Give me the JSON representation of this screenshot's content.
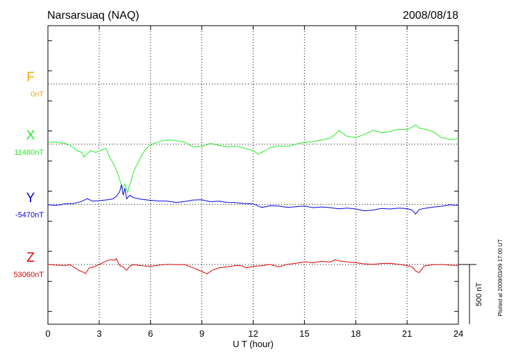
{
  "chart_data": {
    "type": "line",
    "title": "Narsarsuaq (NAQ)",
    "date": "2008/08/18",
    "xlabel": "U T (hour)",
    "xlim": [
      0,
      24
    ],
    "xticks": [
      "0",
      "3",
      "6",
      "9",
      "12",
      "15",
      "18",
      "21",
      "24"
    ],
    "scale_bar_label": "500 nT",
    "scale_bar_nT": 500,
    "plotted_note": "Plotted at 2009/03/09 17:00 UT",
    "grid": true,
    "series": [
      {
        "name": "F",
        "baseline_label": "0nT",
        "color": "#f5a800",
        "baseline_nT": 0,
        "has_data": false,
        "points": []
      },
      {
        "name": "X",
        "baseline_label": "11480nT",
        "color": "#22ee22",
        "baseline_nT": 11480,
        "has_data": true,
        "points": [
          [
            0.0,
            11480
          ],
          [
            0.5,
            11482
          ],
          [
            1.0,
            11470
          ],
          [
            1.4,
            11445
          ],
          [
            1.7,
            11410
          ],
          [
            2.0,
            11395
          ],
          [
            2.1,
            11355
          ],
          [
            2.3,
            11385
          ],
          [
            2.5,
            11410
          ],
          [
            2.8,
            11395
          ],
          [
            3.2,
            11420
          ],
          [
            3.4,
            11430
          ],
          [
            3.6,
            11360
          ],
          [
            3.8,
            11310
          ],
          [
            4.0,
            11250
          ],
          [
            4.2,
            11170
          ],
          [
            4.35,
            11090
          ],
          [
            4.5,
            11130
          ],
          [
            4.65,
            11060
          ],
          [
            4.8,
            11130
          ],
          [
            5.0,
            11230
          ],
          [
            5.3,
            11320
          ],
          [
            5.6,
            11400
          ],
          [
            5.9,
            11450
          ],
          [
            6.2,
            11470
          ],
          [
            6.6,
            11490
          ],
          [
            7.0,
            11500
          ],
          [
            7.5,
            11495
          ],
          [
            8.0,
            11480
          ],
          [
            8.5,
            11440
          ],
          [
            9.0,
            11445
          ],
          [
            9.5,
            11470
          ],
          [
            10.0,
            11455
          ],
          [
            10.5,
            11440
          ],
          [
            11.0,
            11450
          ],
          [
            11.5,
            11430
          ],
          [
            12.0,
            11410
          ],
          [
            12.3,
            11380
          ],
          [
            12.7,
            11410
          ],
          [
            13.0,
            11435
          ],
          [
            13.5,
            11450
          ],
          [
            14.0,
            11445
          ],
          [
            14.5,
            11465
          ],
          [
            15.0,
            11480
          ],
          [
            15.5,
            11485
          ],
          [
            16.0,
            11500
          ],
          [
            16.5,
            11515
          ],
          [
            16.8,
            11545
          ],
          [
            17.0,
            11580
          ],
          [
            17.2,
            11560
          ],
          [
            17.5,
            11530
          ],
          [
            18.0,
            11520
          ],
          [
            18.5,
            11545
          ],
          [
            19.0,
            11580
          ],
          [
            19.5,
            11560
          ],
          [
            20.0,
            11570
          ],
          [
            20.5,
            11590
          ],
          [
            21.0,
            11585
          ],
          [
            21.5,
            11625
          ],
          [
            21.7,
            11600
          ],
          [
            22.0,
            11590
          ],
          [
            22.5,
            11570
          ],
          [
            23.0,
            11520
          ],
          [
            23.5,
            11505
          ],
          [
            24.0,
            11510
          ]
        ]
      },
      {
        "name": "Y",
        "baseline_label": "-5470nT",
        "color": "#0000dd",
        "baseline_nT": -5470,
        "has_data": true,
        "points": [
          [
            0.0,
            -5470
          ],
          [
            0.5,
            -5474
          ],
          [
            1.0,
            -5462
          ],
          [
            1.5,
            -5460
          ],
          [
            2.0,
            -5440
          ],
          [
            2.3,
            -5418
          ],
          [
            2.6,
            -5440
          ],
          [
            3.0,
            -5435
          ],
          [
            3.5,
            -5428
          ],
          [
            3.8,
            -5420
          ],
          [
            4.0,
            -5400
          ],
          [
            4.2,
            -5360
          ],
          [
            4.3,
            -5300
          ],
          [
            4.4,
            -5390
          ],
          [
            4.5,
            -5330
          ],
          [
            4.6,
            -5420
          ],
          [
            4.8,
            -5390
          ],
          [
            5.0,
            -5410
          ],
          [
            5.5,
            -5425
          ],
          [
            6.0,
            -5432
          ],
          [
            6.5,
            -5438
          ],
          [
            7.0,
            -5440
          ],
          [
            7.5,
            -5450
          ],
          [
            8.0,
            -5442
          ],
          [
            8.5,
            -5430
          ],
          [
            9.0,
            -5428
          ],
          [
            9.5,
            -5444
          ],
          [
            10.0,
            -5440
          ],
          [
            10.5,
            -5450
          ],
          [
            11.0,
            -5452
          ],
          [
            11.5,
            -5460
          ],
          [
            12.0,
            -5462
          ],
          [
            12.5,
            -5492
          ],
          [
            13.0,
            -5478
          ],
          [
            13.5,
            -5480
          ],
          [
            14.0,
            -5492
          ],
          [
            14.5,
            -5486
          ],
          [
            15.0,
            -5480
          ],
          [
            15.5,
            -5494
          ],
          [
            16.0,
            -5488
          ],
          [
            16.5,
            -5494
          ],
          [
            17.0,
            -5504
          ],
          [
            17.5,
            -5498
          ],
          [
            18.0,
            -5505
          ],
          [
            18.5,
            -5520
          ],
          [
            19.0,
            -5515
          ],
          [
            19.5,
            -5500
          ],
          [
            20.0,
            -5505
          ],
          [
            20.5,
            -5498
          ],
          [
            21.0,
            -5502
          ],
          [
            21.3,
            -5515
          ],
          [
            21.5,
            -5548
          ],
          [
            21.7,
            -5510
          ],
          [
            22.0,
            -5500
          ],
          [
            22.5,
            -5490
          ],
          [
            23.0,
            -5482
          ],
          [
            23.5,
            -5470
          ],
          [
            24.0,
            -5475
          ]
        ]
      },
      {
        "name": "Z",
        "baseline_label": "53060nT",
        "color": "#dd0000",
        "baseline_nT": 53060,
        "has_data": true,
        "points": [
          [
            0.0,
            53060
          ],
          [
            0.5,
            53055
          ],
          [
            1.0,
            53052
          ],
          [
            1.3,
            53058
          ],
          [
            1.6,
            53030
          ],
          [
            1.8,
            53012
          ],
          [
            2.0,
            53000
          ],
          [
            2.2,
            52984
          ],
          [
            2.4,
            53030
          ],
          [
            2.7,
            53042
          ],
          [
            3.0,
            53060
          ],
          [
            3.3,
            53082
          ],
          [
            3.6,
            53100
          ],
          [
            3.9,
            53095
          ],
          [
            4.0,
            53110
          ],
          [
            4.2,
            53050
          ],
          [
            4.4,
            53040
          ],
          [
            4.6,
            53012
          ],
          [
            4.8,
            53048
          ],
          [
            5.0,
            53058
          ],
          [
            5.5,
            53050
          ],
          [
            6.0,
            53045
          ],
          [
            6.5,
            53055
          ],
          [
            7.0,
            53062
          ],
          [
            7.5,
            53058
          ],
          [
            8.0,
            53060
          ],
          [
            8.5,
            53032
          ],
          [
            9.0,
            53002
          ],
          [
            9.3,
            52982
          ],
          [
            9.6,
            53012
          ],
          [
            10.0,
            53032
          ],
          [
            10.5,
            53040
          ],
          [
            11.0,
            53052
          ],
          [
            11.3,
            53050
          ],
          [
            11.6,
            53032
          ],
          [
            12.0,
            53045
          ],
          [
            12.5,
            53050
          ],
          [
            13.0,
            53060
          ],
          [
            13.5,
            53040
          ],
          [
            14.0,
            53062
          ],
          [
            14.5,
            53070
          ],
          [
            15.0,
            53082
          ],
          [
            15.5,
            53074
          ],
          [
            16.0,
            53088
          ],
          [
            16.5,
            53080
          ],
          [
            16.8,
            53100
          ],
          [
            17.0,
            53090
          ],
          [
            17.5,
            53082
          ],
          [
            18.0,
            53075
          ],
          [
            18.5,
            53065
          ],
          [
            19.0,
            53062
          ],
          [
            19.5,
            53068
          ],
          [
            20.0,
            53070
          ],
          [
            20.5,
            53062
          ],
          [
            21.0,
            53052
          ],
          [
            21.3,
            53040
          ],
          [
            21.5,
            53005
          ],
          [
            21.7,
            52992
          ],
          [
            22.0,
            53048
          ],
          [
            22.5,
            53058
          ],
          [
            23.0,
            53060
          ],
          [
            23.5,
            53055
          ],
          [
            24.0,
            53052
          ]
        ]
      }
    ]
  }
}
